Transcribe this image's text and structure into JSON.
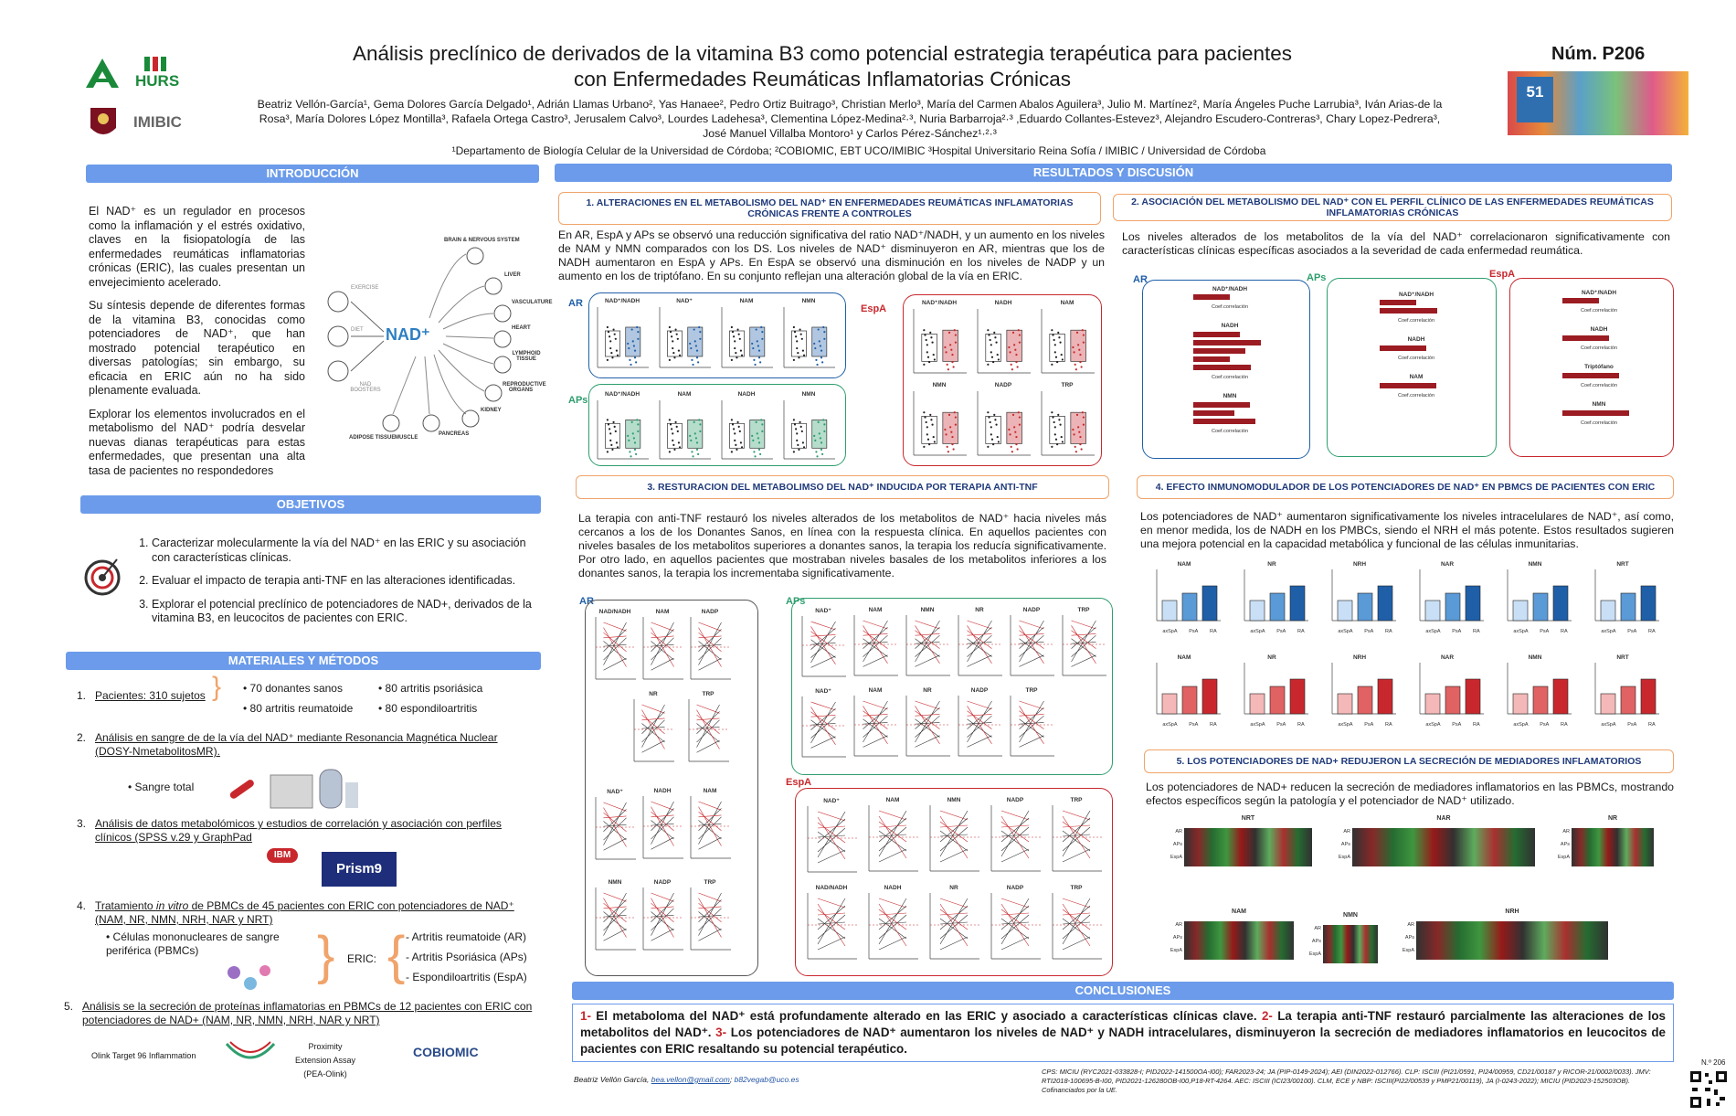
{
  "header": {
    "title_line1": "Análisis preclínico de derivados de la vitamina B3 como potencial estrategia terapéutica para pacientes",
    "title_line2": "con Enfermedades Reumáticas Inflamatorias Crónicas",
    "poster_number": "Núm. P206",
    "authors_line1": "Beatriz Vellón-García¹, Gema Dolores García Delgado¹, Adrián Llamas Urbano², Yas Hanaee², Pedro Ortiz Buitrago³, Christian Merlo³, María del Carmen Abalos Aguilera³, Julio M. Martínez², María Ángeles Puche Larrubia³, Iván Arias-de la",
    "authors_line2": "Rosa³, María Dolores López Montilla³, Rafaela Ortega Castro³, Jerusalem Calvo³, Lourdes Ladehesa³, Clementina López-Medina²·³, Nuria Barbarroja²·³ ,Eduardo Collantes-Estevez³, Alejandro Escudero-Contreras³, Chary Lopez-Pedrera³,",
    "authors_line3": "José Manuel Villalba Montoro¹ y Carlos Pérez-Sánchez¹·²·³",
    "affiliations": "¹Departamento de Biología Celular de la Universidad de Córdoba; ²COBIOMIC, EBT UCO/IMIBIC   ³Hospital Universitario Reina Sofía / IMIBIC / Universidad de Córdoba",
    "logo_hurs": "HURS",
    "logo_imibic": "IMIBIC",
    "congress_number": "51"
  },
  "intro": {
    "heading": "INTRODUCCIÓN",
    "p1": "El NAD⁺ es un regulador en procesos como la inflamación y el estrés oxidativo, claves en la fisiopatología de las enfermedades reumáticas inflamatorias crónicas (ERIC), las cuales presentan un envejecimiento acelerado.",
    "p2": "Su síntesis depende de diferentes formas de la vitamina B3, conocidas como potenciadores de NAD⁺, que han mostrado potencial terapéutico en diversas patologías; sin embargo, su eficacia en ERIC aún no ha sido plenamente evaluada.",
    "p3": "Explorar los elementos involucrados en el metabolismo del NAD⁺ podría desvelar nuevas dianas terapéuticas para estas enfermedades, que presentan una alta tasa de pacientes no respondedores",
    "diagram_center": "NAD⁺",
    "diagram_left": [
      "EXERCISE",
      "DIET",
      "NAD BOOSTERS"
    ],
    "diagram_right": [
      "BRAIN & NERVOUS SYSTEM",
      "LIVER",
      "VASCULATURE",
      "HEART",
      "LYMPHOID TISSUE",
      "REPRODUCTIVE ORGANS",
      "KIDNEY",
      "PANCREAS",
      "MUSCLE",
      "ADIPOSE TISSUE"
    ]
  },
  "objectives": {
    "heading": "OBJETIVOS",
    "items": [
      "Caracterizar molecularmente la vía del NAD⁺ en las ERIC y su asociación con características clínicas.",
      "Evaluar el impacto de terapia anti-TNF en las alteraciones identificadas.",
      "Explorar el potencial preclínico de potenciadores de NAD+, derivados de la vitamina B3, en leucocitos de pacientes con ERIC."
    ]
  },
  "methods": {
    "heading": "MATERIALES Y MÉTODOS",
    "m1_label": "Pacientes: 310 sujetos",
    "m1_a": "70 donantes sanos",
    "m1_b": "80 artritis reumatoide",
    "m1_c": "80 artritis psoriásica",
    "m1_d": "80 espondiloartritis",
    "m2": "Análisis en sangre de de la vía del NAD⁺ mediante Resonancia Magnética Nuclear (DOSY-NmetabolitosMR).",
    "m2_sub": "Sangre total",
    "m3": "Análisis de datos metabolómicos y estudios de correlación y asociación con perfiles clínicos (SPSS v.29 y GraphPad",
    "m3_logo1": "IBM SPSS",
    "m3_logo2": "Prism9",
    "m4_pre": "Tratamiento ",
    "m4_it": "in vitro",
    "m4_post": " de PBMCs de 45 pacientes con ERIC con potenciadores de NAD⁺ (NAM, NR, NMN, NRH, NAR y NRT)",
    "m4_cells": "Células mononucleares de sangre periférica (PBMCs)",
    "m4_eric": "ERIC:",
    "m4_ar": "Artritis reumatoide (AR)",
    "m4_aps": "Artritis Psoriásica (APs)",
    "m4_espa": "Espondiloartritis (EspA)",
    "m5": "Análisis se la secreción de proteínas inflamatorias en PBMCs de 12 pacientes con ERIC con potenciadores de NAD+ (NAM, NR, NMN, NRH, NAR y NRT)",
    "m5_olink": "Olink Target 96 Inflammation",
    "m5_pea": "Proximity Extension Assay (PEA-Olink)",
    "m5_cobiomic": "COBIOMIC"
  },
  "results": {
    "heading": "RESULTADOS Y DISCUSIÓN",
    "s1_title": "1. ALTERACIONES EN EL METABOLISMO DEL NAD⁺ EN ENFERMEDADES REUMÁTICAS INFLAMATORIAS CRÓNICAS FRENTE A CONTROLES",
    "s1_text": "En AR, EspA y APs se observó una reducción significativa del ratio NAD⁺/NADH, y un aumento en los niveles de NAM y NMN comparados con los DS. Los niveles de NAD⁺ disminuyeron en AR, mientras que los de NADH aumentaron en EspA y APs. En EspA se observó una disminución en los niveles de NADP y un aumento en los de triptófano. En su conjunto reflejan una alteración global de la vía en ERIC.",
    "s1_ar": "AR",
    "s1_aps": "APs",
    "s1_espa": "EspA",
    "s1_ar_plots": [
      "NAD⁺/NADH",
      "NAD⁺",
      "NAM",
      "NMN"
    ],
    "s1_aps_plots": [
      "NAD⁺/NADH",
      "NAM",
      "NADH",
      "NMN"
    ],
    "s1_espa_plots": [
      "NAD⁺/NADH",
      "NADH",
      "NAM",
      "NMN",
      "NADP",
      "TRP"
    ],
    "s2_title": "2. ASOCIACIÓN DEL METABOLISMO DEL NAD⁺ CON EL PERFIL CLÍNICO DE LAS ENFERMEDADES REUMÁTICAS INFLAMATORIAS CRÓNICAS",
    "s2_text": "Los niveles alterados de los metabolitos de la vía del NAD⁺ correlacionaron significativamente con características clínicas específicas asociados a la severidad de cada enfermedad reumática.",
    "s2_ar_plots": [
      "NAD⁺/NADH",
      "NADH",
      "NMN"
    ],
    "s2_aps_plots": [
      "NAD⁺/NADH",
      "NADH",
      "NAM"
    ],
    "s2_espa_plots": [
      "NAD⁺/NADH",
      "NADH",
      "Triptófano",
      "NMN"
    ],
    "s2_xlabel": "Coef.correlación",
    "s3_title": "3. RESTURACION DEL METABOLIMSO DEL NAD⁺ INDUCIDA POR TERAPIA ANTI-TNF",
    "s3_text": "La terapia con anti-TNF restauró los niveles alterados de los metabolitos de NAD⁺ hacia niveles más cercanos a los de los Donantes Sanos, en línea con la respuesta clínica. En aquellos pacientes con niveles basales de los metabolitos superiores a donantes sanos, la terapia los reducía significativamente. Por otro lado, en aquellos pacientes que mostraban niveles basales de los metabolitos inferiores a los donantes sanos, la terapia los incrementaba significativamente.",
    "s3_ar_plots": [
      "NAD/NADH",
      "NAM",
      "NADP",
      "NR",
      "TRP",
      "NAD⁺",
      "NADH",
      "NAM",
      "NMN",
      "NADP",
      "TRP"
    ],
    "s3_aps_plots": [
      "NAD⁺",
      "NAM",
      "NMN",
      "NR",
      "NADP",
      "TRP",
      "NAD⁺",
      "NAM",
      "NR",
      "NADP",
      "TRP"
    ],
    "s3_espa_plots": [
      "NAD⁺",
      "NAM",
      "NMN",
      "NADP",
      "TRP",
      "NAD/NADH",
      "NADH",
      "NR",
      "NADP",
      "TRP"
    ],
    "s4_title": "4. EFECTO INMUNOMODULADOR DE LOS POTENCIADORES DE NAD⁺ EN PBMCS DE PACIENTES CON ERIC",
    "s4_text": "Los potenciadores de NAD⁺ aumentaron significativamente los niveles intracelulares de NAD⁺, así como, en menor medida, los de NADH en los PMBCs, siendo el NRH el más potente. Estos resultados sugieren una mejora potencial en la capacidad metabólica y funcional de las células inmunitarias.",
    "s4_row1": [
      "NAM",
      "NR",
      "NRH",
      "NAR",
      "NMN",
      "NRT"
    ],
    "s4_row2": [
      "NAM",
      "NR",
      "NRH",
      "NAR",
      "NMN",
      "NRT"
    ],
    "s4_groups": [
      "axSpA",
      "PsA",
      "RA"
    ],
    "s5_title": "5. LOS POTENCIADORES DE NAD+ REDUJERON LA SECRECIÓN DE MEDIADORES INFLAMATORIOS",
    "s5_text": "Los potenciadores de NAD+ reducen la secreción de mediadores inflamatorios en las PBMCs, mostrando efectos específicos según la patología y el potenciador de NAD⁺ utilizado.",
    "s5_heatmaps": [
      "NRT",
      "NAR",
      "NR",
      "NAM",
      "NMN",
      "NRH"
    ],
    "s5_rows": [
      "AR",
      "APs",
      "EspA"
    ]
  },
  "conclusions": {
    "heading": "CONCLUSIONES",
    "n1": "1-",
    "t1": " El metaboloma del NAD⁺ está profundamente alterado en las ERIC y asociado a características clínicas clave. ",
    "n2": "2-",
    "t2": " La terapia anti-TNF restauró parcialmente las alteraciones de los metabolitos del NAD⁺. ",
    "n3": "3-",
    "t3": " Los potenciadores de NAD⁺ aumentaron los niveles de NAD⁺ y NADH intracelulares, disminuyeron la secreción de mediadores inflamatorios en leucocitos de pacientes con ERIC resaltando su potencial terapéutico."
  },
  "footer": {
    "contact_name": "Beatriz Vellón García, ",
    "contact_email1": "bea.vellon@gmail.com",
    "contact_sep": "; ",
    "contact_email2": "b82vegab@uco.es",
    "funding": "CPS: MICIU (RYC2021-033828-I; PID2022-141500OA-I00); FAR2023-24; JA (PIP-0149-2024); AEI (DIN2022-012766). CLP: ISCIII (PI21/0591, PI24/00959, CD21/00187 y RICOR-21/0002/0033). JMV: RTI2018-100695-B-I00, PID2021-126280OB-I00,P18-RT-4264. AEC: ISCIII (ICI23/00100). CLM, ECE y NBP: ISCIII(PI22/00539 y PMP21/00119), JA (I-0243-2022); MICIU (PID2023-152503OB). Cofinanciados por la UE.",
    "qr_label": "N.º 206"
  },
  "colors": {
    "accent_blue": "#6b9bea",
    "ar_blue": "#1f5fa8",
    "aps_green": "#2e9e6e",
    "espa_red": "#c8282d",
    "sub_border": "#f0a46b"
  }
}
